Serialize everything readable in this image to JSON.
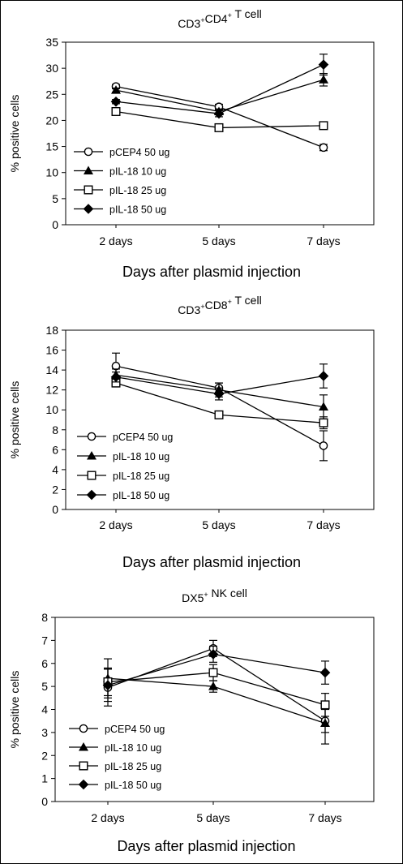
{
  "chart_data": [
    {
      "type": "line",
      "title": "CD3+CD4+ T cell",
      "title_parts": {
        "a": "CD3",
        "sup1": "+",
        "b": "CD4",
        "sup2": "+",
        "c": " T cell"
      },
      "xlabel": "Days after plasmid injection",
      "ylabel": "% positive cells",
      "categories": [
        "2 days",
        "5 days",
        "7 days"
      ],
      "ylim": [
        0,
        35
      ],
      "yticks": [
        "0",
        "5",
        "10",
        "15",
        "20",
        "25",
        "30",
        "35"
      ],
      "legend_position": "lower-left",
      "series": [
        {
          "name": "pCEP4 50 ug",
          "marker": "circle",
          "values": [
            26.5,
            22.6,
            14.8
          ],
          "errors": [
            0.4,
            0.5,
            0.6
          ]
        },
        {
          "name": "pIL-18 10 ug",
          "marker": "triangle",
          "values": [
            25.8,
            21.7,
            27.8
          ],
          "errors": [
            0.4,
            0.5,
            1.2
          ]
        },
        {
          "name": "pIL-18 25 ug",
          "marker": "square",
          "values": [
            21.7,
            18.6,
            19.0
          ],
          "errors": [
            0.4,
            0.4,
            0.5
          ]
        },
        {
          "name": "pIL-18 50 ug",
          "marker": "diamond",
          "values": [
            23.6,
            21.3,
            30.7
          ],
          "errors": [
            0.4,
            0.6,
            2.0
          ]
        }
      ]
    },
    {
      "type": "line",
      "title": "CD3+CD8+ T cell",
      "title_parts": {
        "a": "CD3",
        "sup1": "+",
        "b": "CD8",
        "sup2": "+",
        "c": " T cell"
      },
      "xlabel": "Days after plasmid injection",
      "ylabel": "% positive cells",
      "categories": [
        "2 days",
        "5 days",
        "7 days"
      ],
      "ylim": [
        0,
        18
      ],
      "yticks": [
        "0",
        "2",
        "4",
        "6",
        "8",
        "10",
        "12",
        "14",
        "16",
        "18"
      ],
      "legend_position": "lower-left",
      "series": [
        {
          "name": "pCEP4 50 ug",
          "marker": "circle",
          "values": [
            14.4,
            12.2,
            6.4
          ],
          "errors": [
            1.3,
            0.5,
            1.5
          ]
        },
        {
          "name": "pIL-18 10 ug",
          "marker": "triangle",
          "values": [
            13.5,
            12.0,
            10.3
          ],
          "errors": [
            0.6,
            0.7,
            1.2
          ]
        },
        {
          "name": "pIL-18 25 ug",
          "marker": "square",
          "values": [
            12.7,
            9.5,
            8.7
          ],
          "errors": [
            0.4,
            0.3,
            0.6
          ]
        },
        {
          "name": "pIL-18 50 ug",
          "marker": "diamond",
          "values": [
            13.3,
            11.6,
            13.4
          ],
          "errors": [
            0.5,
            0.6,
            1.2
          ]
        }
      ]
    },
    {
      "type": "line",
      "title": "DX5+ NK cell",
      "title_parts": {
        "a": "DX5",
        "sup1": "+",
        "b": " NK cell",
        "sup2": "",
        "c": ""
      },
      "xlabel": "Days after plasmid injection",
      "ylabel": "% positive cells",
      "categories": [
        "2 days",
        "5 days",
        "7 days"
      ],
      "ylim": [
        0,
        8
      ],
      "yticks": [
        "0",
        "1",
        "2",
        "3",
        "4",
        "5",
        "6",
        "7",
        "8"
      ],
      "legend_position": "lower-left",
      "series": [
        {
          "name": "pCEP4 50 ug",
          "marker": "circle",
          "values": [
            4.95,
            6.65,
            3.5
          ],
          "errors": [
            0.8,
            0.35,
            0.5
          ]
        },
        {
          "name": "pIL-18 10 ug",
          "marker": "triangle",
          "values": [
            5.35,
            5.0,
            3.4
          ],
          "errors": [
            0.85,
            0.25,
            0.9
          ]
        },
        {
          "name": "pIL-18 25 ug",
          "marker": "square",
          "values": [
            5.2,
            5.6,
            4.2
          ],
          "errors": [
            0.6,
            0.35,
            0.5
          ]
        },
        {
          "name": "pIL-18 50 ug",
          "marker": "diamond",
          "values": [
            5.05,
            6.4,
            5.6
          ],
          "errors": [
            0.7,
            0.35,
            0.5
          ]
        }
      ]
    }
  ]
}
